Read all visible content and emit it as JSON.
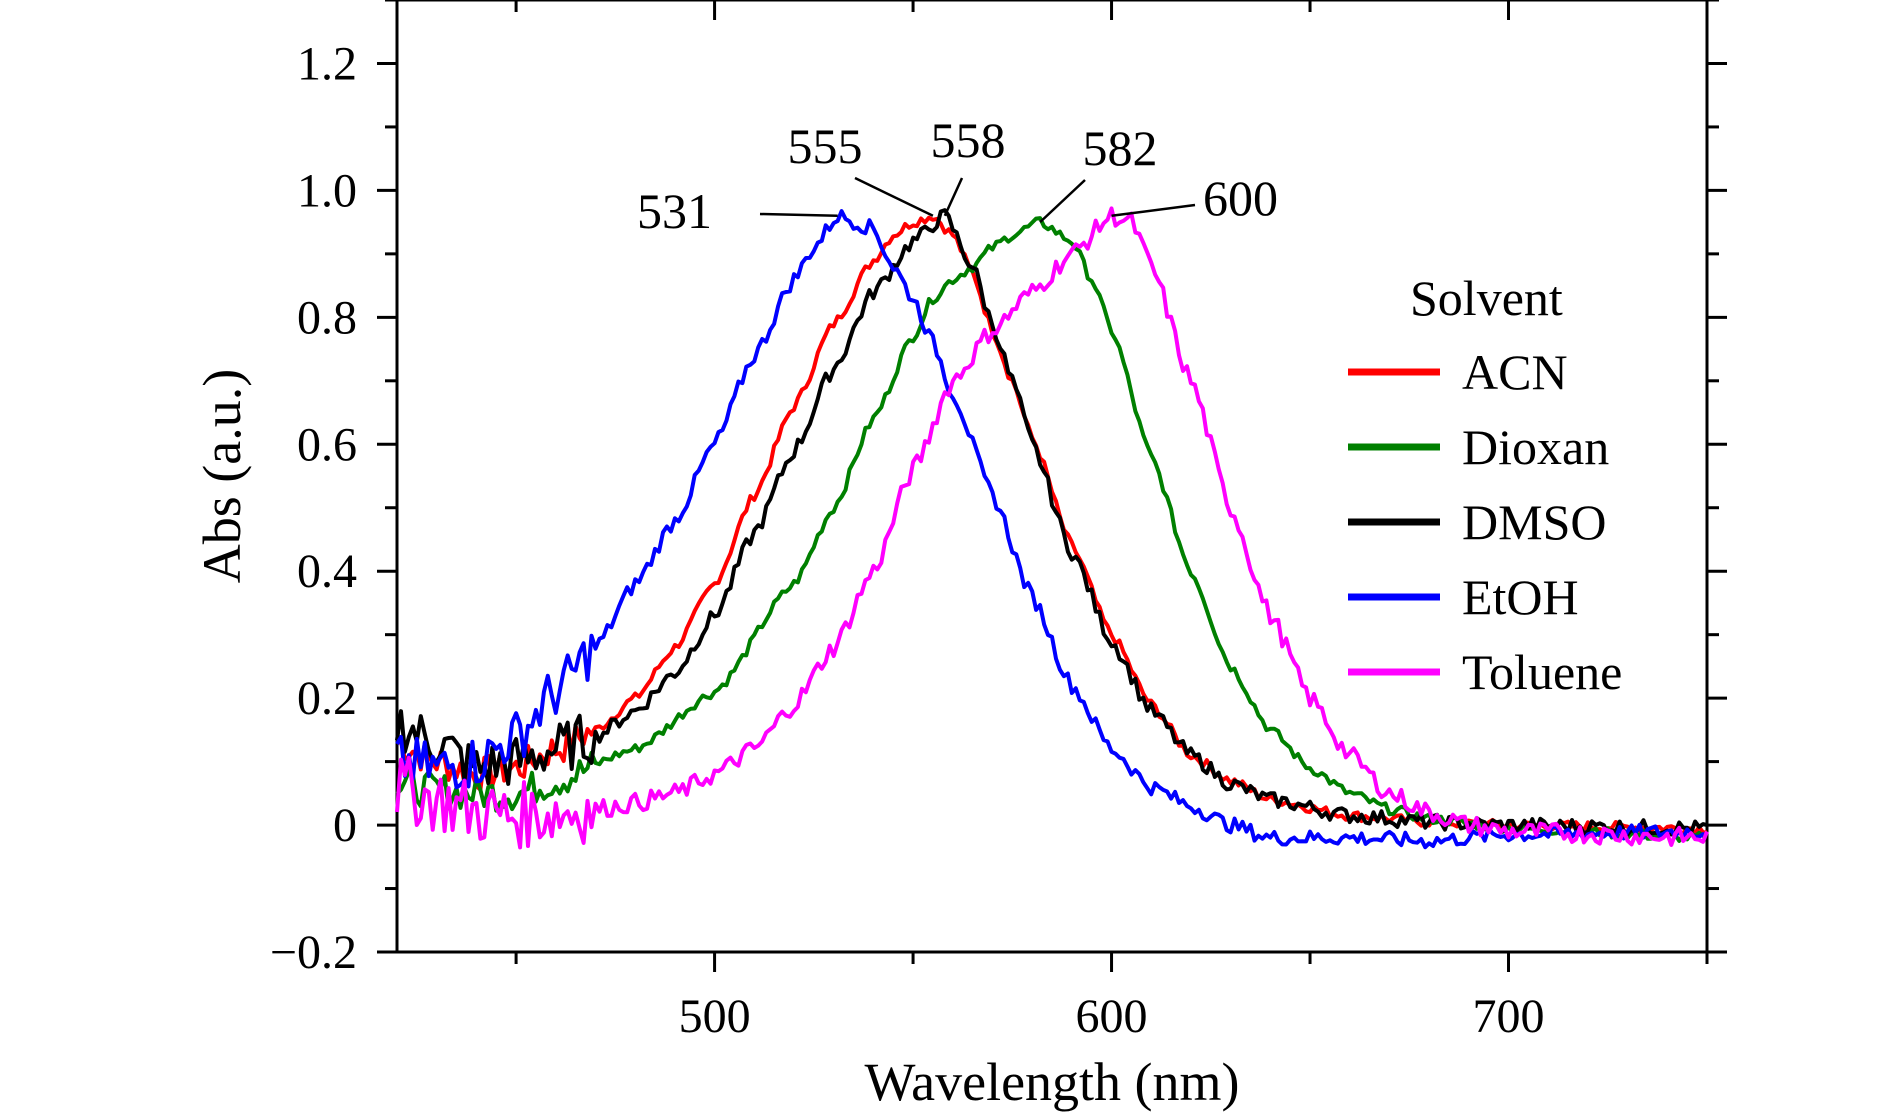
{
  "chart_data": {
    "type": "line",
    "title": "",
    "xlabel": "Wavelength (nm)",
    "ylabel": "Abs (a.u.)",
    "xlim": [
      420,
      750
    ],
    "ylim": [
      -0.2,
      1.3
    ],
    "x_major_ticks": [
      500,
      600,
      700
    ],
    "x_tick_labels": [
      "500",
      "600",
      "700"
    ],
    "y_major_ticks": [
      -0.2,
      0,
      0.2,
      0.4,
      0.6,
      0.8,
      1.0,
      1.2
    ],
    "y_tick_labels": [
      "−0.2",
      "0",
      "0.2",
      "0.4",
      "0.6",
      "0.8",
      "1.0",
      "1.2"
    ],
    "grid": false,
    "legend_title": "Solvent",
    "legend_position": "right",
    "series": [
      {
        "name": "ACN",
        "color": "#ff0000",
        "points": [
          [
            420,
            0.13
          ],
          [
            430,
            0.1
          ],
          [
            440,
            0.08
          ],
          [
            450,
            0.09
          ],
          [
            460,
            0.12
          ],
          [
            470,
            0.15
          ],
          [
            480,
            0.2
          ],
          [
            490,
            0.28
          ],
          [
            500,
            0.38
          ],
          [
            510,
            0.52
          ],
          [
            520,
            0.66
          ],
          [
            530,
            0.79
          ],
          [
            540,
            0.89
          ],
          [
            545,
            0.93
          ],
          [
            550,
            0.95
          ],
          [
            555,
            0.96
          ],
          [
            560,
            0.93
          ],
          [
            565,
            0.87
          ],
          [
            570,
            0.78
          ],
          [
            575,
            0.7
          ],
          [
            580,
            0.61
          ],
          [
            590,
            0.44
          ],
          [
            600,
            0.3
          ],
          [
            610,
            0.19
          ],
          [
            620,
            0.11
          ],
          [
            630,
            0.07
          ],
          [
            640,
            0.04
          ],
          [
            660,
            0.015
          ],
          [
            680,
            0.005
          ],
          [
            700,
            0.0
          ],
          [
            750,
            -0.005
          ]
        ],
        "noise": 0.008
      },
      {
        "name": "Dioxan",
        "color": "#008000",
        "points": [
          [
            420,
            0.06
          ],
          [
            440,
            0.05
          ],
          [
            450,
            0.05
          ],
          [
            460,
            0.07
          ],
          [
            480,
            0.12
          ],
          [
            500,
            0.21
          ],
          [
            520,
            0.38
          ],
          [
            530,
            0.5
          ],
          [
            540,
            0.64
          ],
          [
            550,
            0.77
          ],
          [
            555,
            0.83
          ],
          [
            560,
            0.86
          ],
          [
            565,
            0.88
          ],
          [
            570,
            0.91
          ],
          [
            575,
            0.93
          ],
          [
            582,
            0.95
          ],
          [
            590,
            0.92
          ],
          [
            595,
            0.86
          ],
          [
            600,
            0.78
          ],
          [
            610,
            0.58
          ],
          [
            620,
            0.4
          ],
          [
            630,
            0.25
          ],
          [
            640,
            0.15
          ],
          [
            650,
            0.09
          ],
          [
            660,
            0.05
          ],
          [
            670,
            0.025
          ],
          [
            680,
            0.01
          ],
          [
            700,
            -0.005
          ],
          [
            750,
            -0.02
          ]
        ],
        "noise": 0.008
      },
      {
        "name": "DMSO",
        "color": "#000000",
        "points": [
          [
            420,
            0.16
          ],
          [
            430,
            0.13
          ],
          [
            440,
            0.09
          ],
          [
            450,
            0.1
          ],
          [
            460,
            0.12
          ],
          [
            470,
            0.14
          ],
          [
            480,
            0.18
          ],
          [
            490,
            0.24
          ],
          [
            500,
            0.33
          ],
          [
            510,
            0.46
          ],
          [
            520,
            0.59
          ],
          [
            530,
            0.72
          ],
          [
            540,
            0.84
          ],
          [
            550,
            0.92
          ],
          [
            558,
            0.96
          ],
          [
            565,
            0.88
          ],
          [
            570,
            0.79
          ],
          [
            575,
            0.7
          ],
          [
            580,
            0.6
          ],
          [
            590,
            0.43
          ],
          [
            600,
            0.29
          ],
          [
            610,
            0.18
          ],
          [
            620,
            0.11
          ],
          [
            630,
            0.065
          ],
          [
            640,
            0.04
          ],
          [
            660,
            0.015
          ],
          [
            680,
            0.005
          ],
          [
            700,
            0.0
          ],
          [
            750,
            -0.005
          ]
        ],
        "noise": 0.012
      },
      {
        "name": "EtOH",
        "color": "#0000ff",
        "points": [
          [
            420,
            0.1
          ],
          [
            430,
            0.09
          ],
          [
            440,
            0.1
          ],
          [
            450,
            0.14
          ],
          [
            460,
            0.21
          ],
          [
            470,
            0.28
          ],
          [
            480,
            0.38
          ],
          [
            490,
            0.48
          ],
          [
            500,
            0.6
          ],
          [
            510,
            0.74
          ],
          [
            520,
            0.86
          ],
          [
            525,
            0.91
          ],
          [
            531,
            0.96
          ],
          [
            540,
            0.94
          ],
          [
            545,
            0.88
          ],
          [
            550,
            0.83
          ],
          [
            555,
            0.76
          ],
          [
            560,
            0.68
          ],
          [
            570,
            0.52
          ],
          [
            580,
            0.36
          ],
          [
            590,
            0.22
          ],
          [
            600,
            0.12
          ],
          [
            610,
            0.06
          ],
          [
            620,
            0.03
          ],
          [
            630,
            0.0
          ],
          [
            640,
            -0.02
          ],
          [
            660,
            -0.02
          ],
          [
            680,
            -0.025
          ],
          [
            700,
            -0.015
          ],
          [
            750,
            -0.01
          ]
        ],
        "noise": 0.012
      },
      {
        "name": "Toluene",
        "color": "#ff00ff",
        "points": [
          [
            420,
            0.06
          ],
          [
            430,
            0.04
          ],
          [
            440,
            0.02
          ],
          [
            450,
            0.015
          ],
          [
            460,
            0.02
          ],
          [
            470,
            0.025
          ],
          [
            480,
            0.035
          ],
          [
            490,
            0.05
          ],
          [
            500,
            0.08
          ],
          [
            510,
            0.12
          ],
          [
            520,
            0.19
          ],
          [
            530,
            0.28
          ],
          [
            540,
            0.4
          ],
          [
            550,
            0.56
          ],
          [
            560,
            0.7
          ],
          [
            570,
            0.78
          ],
          [
            580,
            0.84
          ],
          [
            590,
            0.9
          ],
          [
            600,
            0.96
          ],
          [
            605,
            0.95
          ],
          [
            610,
            0.88
          ],
          [
            620,
            0.7
          ],
          [
            630,
            0.5
          ],
          [
            640,
            0.33
          ],
          [
            650,
            0.2
          ],
          [
            660,
            0.11
          ],
          [
            670,
            0.05
          ],
          [
            680,
            0.02
          ],
          [
            690,
            0.0
          ],
          [
            700,
            -0.01
          ],
          [
            750,
            -0.02
          ]
        ],
        "noise": 0.015
      }
    ],
    "annotations": [
      {
        "label": "531",
        "x": 531,
        "y": 0.96
      },
      {
        "label": "555",
        "x": 555,
        "y": 0.96
      },
      {
        "label": "558",
        "x": 558,
        "y": 0.96
      },
      {
        "label": "582",
        "x": 582,
        "y": 0.95
      },
      {
        "label": "600",
        "x": 600,
        "y": 0.96
      }
    ]
  }
}
